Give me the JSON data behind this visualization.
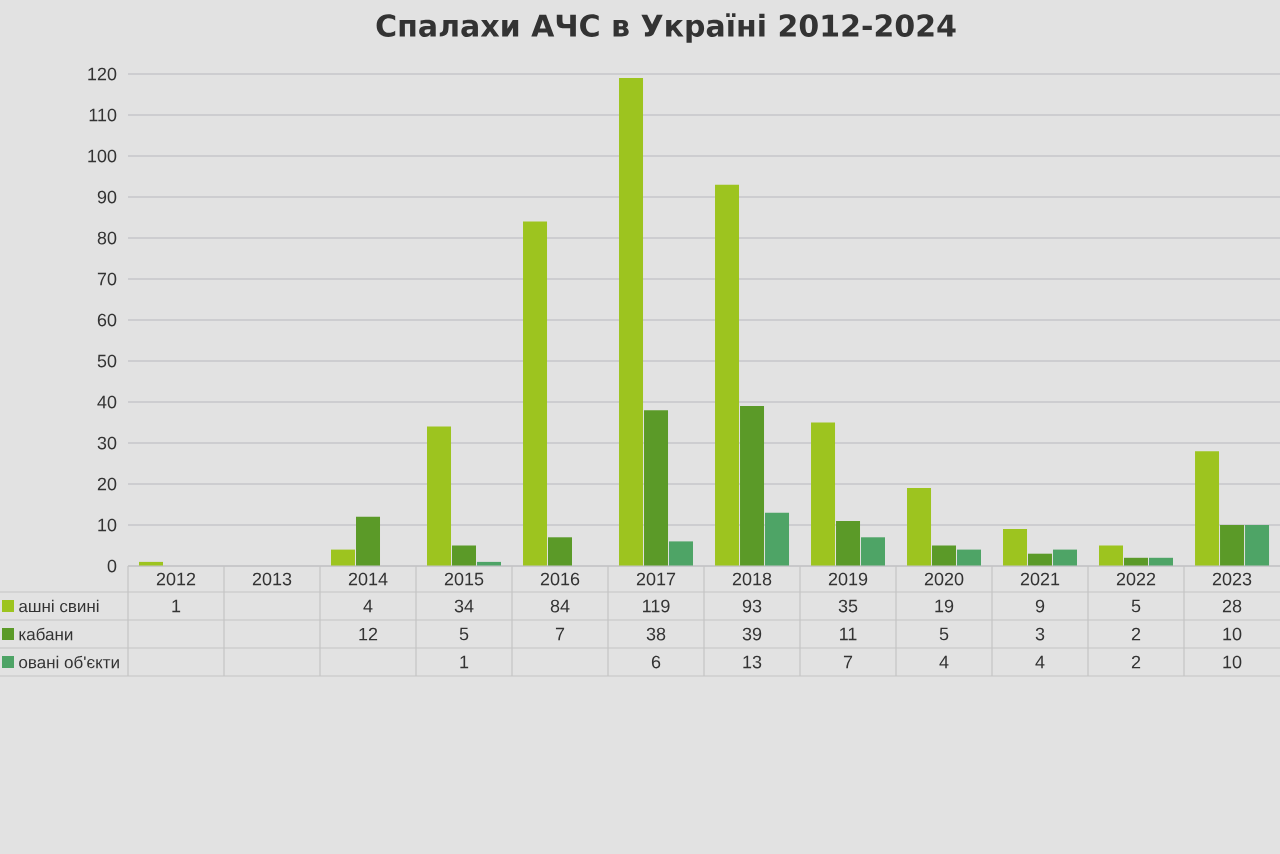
{
  "chart_data": {
    "type": "bar",
    "title": "Спалахи АЧС в Україні 2012-2024",
    "categories": [
      "2012",
      "2013",
      "2014",
      "2015",
      "2016",
      "2017",
      "2018",
      "2019",
      "2020",
      "2021",
      "2022",
      "2023"
    ],
    "series": [
      {
        "name": "ашні свині",
        "color": "#9dc41f",
        "values": [
          1,
          null,
          4,
          34,
          84,
          119,
          93,
          35,
          19,
          9,
          5,
          28
        ]
      },
      {
        "name": "кабани",
        "color": "#5b9a28",
        "values": [
          null,
          null,
          12,
          5,
          7,
          38,
          39,
          11,
          5,
          3,
          2,
          10
        ]
      },
      {
        "name": "овані об'єкти",
        "color": "#4ea466",
        "values": [
          null,
          null,
          null,
          1,
          null,
          6,
          13,
          7,
          4,
          4,
          2,
          10
        ]
      }
    ],
    "ylim": [
      0,
      120
    ],
    "yticks": [
      0,
      10,
      20,
      30,
      40,
      50,
      60,
      70,
      80,
      90,
      100,
      110,
      120
    ],
    "grid": "y",
    "legend": "bottom",
    "data_labels": true
  }
}
